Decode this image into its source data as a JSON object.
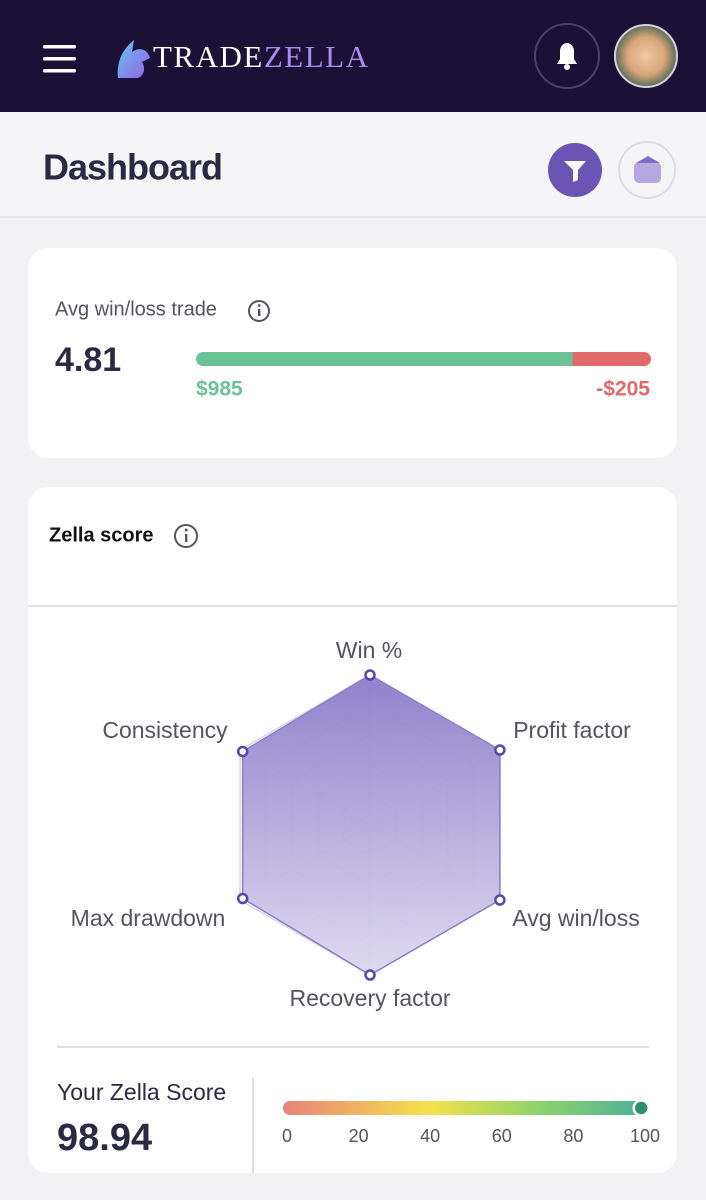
{
  "header": {
    "brand_first": "TRADE",
    "brand_second": "ZELLA"
  },
  "page": {
    "title": "Dashboard"
  },
  "avg_win_loss": {
    "title": "Avg win/loss trade",
    "ratio": 4.81,
    "avg_win": {
      "value": 985,
      "label": "$985",
      "color": "#6cc297"
    },
    "avg_loss": {
      "value": -205,
      "label": "-$205",
      "color": "#e06a6a"
    }
  },
  "zella_score": {
    "title": "Zella score",
    "chart": {
      "type": "radar",
      "categories": [
        "Win %",
        "Profit factor",
        "Avg win/loss",
        "Recovery factor",
        "Max drawdown",
        "Consistency"
      ],
      "values": [
        100,
        100,
        100,
        100,
        98,
        98
      ],
      "rlim": [
        0,
        100
      ],
      "rticks": [
        20,
        40,
        60,
        80,
        100
      ],
      "color": "#8c7dcc",
      "grid": true
    },
    "score_label": "Your Zella Score",
    "score": 98.94,
    "gauge": {
      "xlim": [
        0,
        100
      ],
      "xticks": [
        0,
        20,
        40,
        60,
        80,
        100
      ]
    }
  }
}
